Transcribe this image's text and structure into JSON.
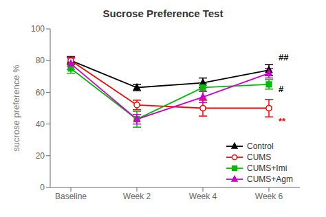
{
  "chart_data": {
    "type": "line",
    "title": "Sucrose Preference Test",
    "ylabel": "sucrose preference %",
    "categories": [
      "Baseline",
      "Week 2",
      "Week 4",
      "Week 6"
    ],
    "ylim": [
      0,
      100
    ],
    "yticks": [
      0,
      20,
      40,
      60,
      80,
      100
    ],
    "grid": false,
    "legend": "lower right",
    "series": [
      {
        "name": "Control",
        "color": "#000000",
        "marker": "triangle",
        "values": [
          80,
          63,
          66,
          74
        ],
        "errors": [
          2.5,
          2.0,
          3.0,
          3.5
        ]
      },
      {
        "name": "CUMS",
        "color": "#ff0000",
        "marker": "open-circle",
        "values": [
          80,
          52,
          50,
          50
        ],
        "errors": [
          2.0,
          3.0,
          5.0,
          5.5
        ]
      },
      {
        "name": "CUMS+Imi",
        "color": "#00bb00",
        "marker": "square",
        "values": [
          75,
          43,
          63,
          65
        ],
        "errors": [
          3.0,
          5.0,
          2.5,
          3.0
        ]
      },
      {
        "name": "CUMS+Agm",
        "color": "#cc00cc",
        "marker": "triangle",
        "values": [
          78,
          43,
          57,
          72
        ],
        "errors": [
          3.5,
          3.0,
          3.5,
          3.0
        ]
      }
    ],
    "annotations": [
      {
        "text": "##",
        "x": "Week 6",
        "y": 82,
        "color": "#000000"
      },
      {
        "text": "#",
        "x": "Week 6",
        "y": 62,
        "color": "#000000"
      },
      {
        "text": "**",
        "x": "Week 6",
        "y": 42,
        "color": "#ff0000"
      }
    ]
  }
}
